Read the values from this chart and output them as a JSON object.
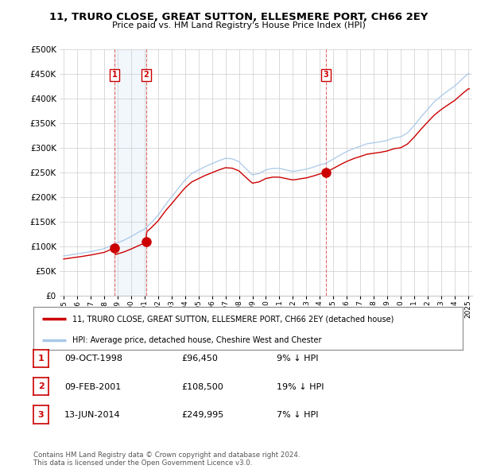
{
  "title": "11, TRURO CLOSE, GREAT SUTTON, ELLESMERE PORT, CH66 2EY",
  "subtitle": "Price paid vs. HM Land Registry's House Price Index (HPI)",
  "legend_label_red": "11, TRURO CLOSE, GREAT SUTTON, ELLESMERE PORT, CH66 2EY (detached house)",
  "legend_label_blue": "HPI: Average price, detached house, Cheshire West and Chester",
  "transactions": [
    {
      "num": 1,
      "date": "09-OCT-1998",
      "price": 96450,
      "pct": "9%",
      "dir": "↓",
      "year": 1998.77
    },
    {
      "num": 2,
      "date": "09-FEB-2001",
      "price": 108500,
      "pct": "19%",
      "dir": "↓",
      "year": 2001.11
    },
    {
      "num": 3,
      "date": "13-JUN-2014",
      "price": 249995,
      "pct": "7%",
      "dir": "↓",
      "year": 2014.45
    }
  ],
  "footer": "Contains HM Land Registry data © Crown copyright and database right 2024.\nThis data is licensed under the Open Government Licence v3.0.",
  "ylim": [
    0,
    500000
  ],
  "yticks": [
    0,
    50000,
    100000,
    150000,
    200000,
    250000,
    300000,
    350000,
    400000,
    450000,
    500000
  ],
  "hpi_color": "#a8c8e8",
  "price_color": "#cc0000",
  "vline_color": "#dd4444",
  "grid_color": "#cccccc",
  "background_color": "#ffffff",
  "plot_bg_color": "#ffffff",
  "shade_color": "#ddeeff"
}
